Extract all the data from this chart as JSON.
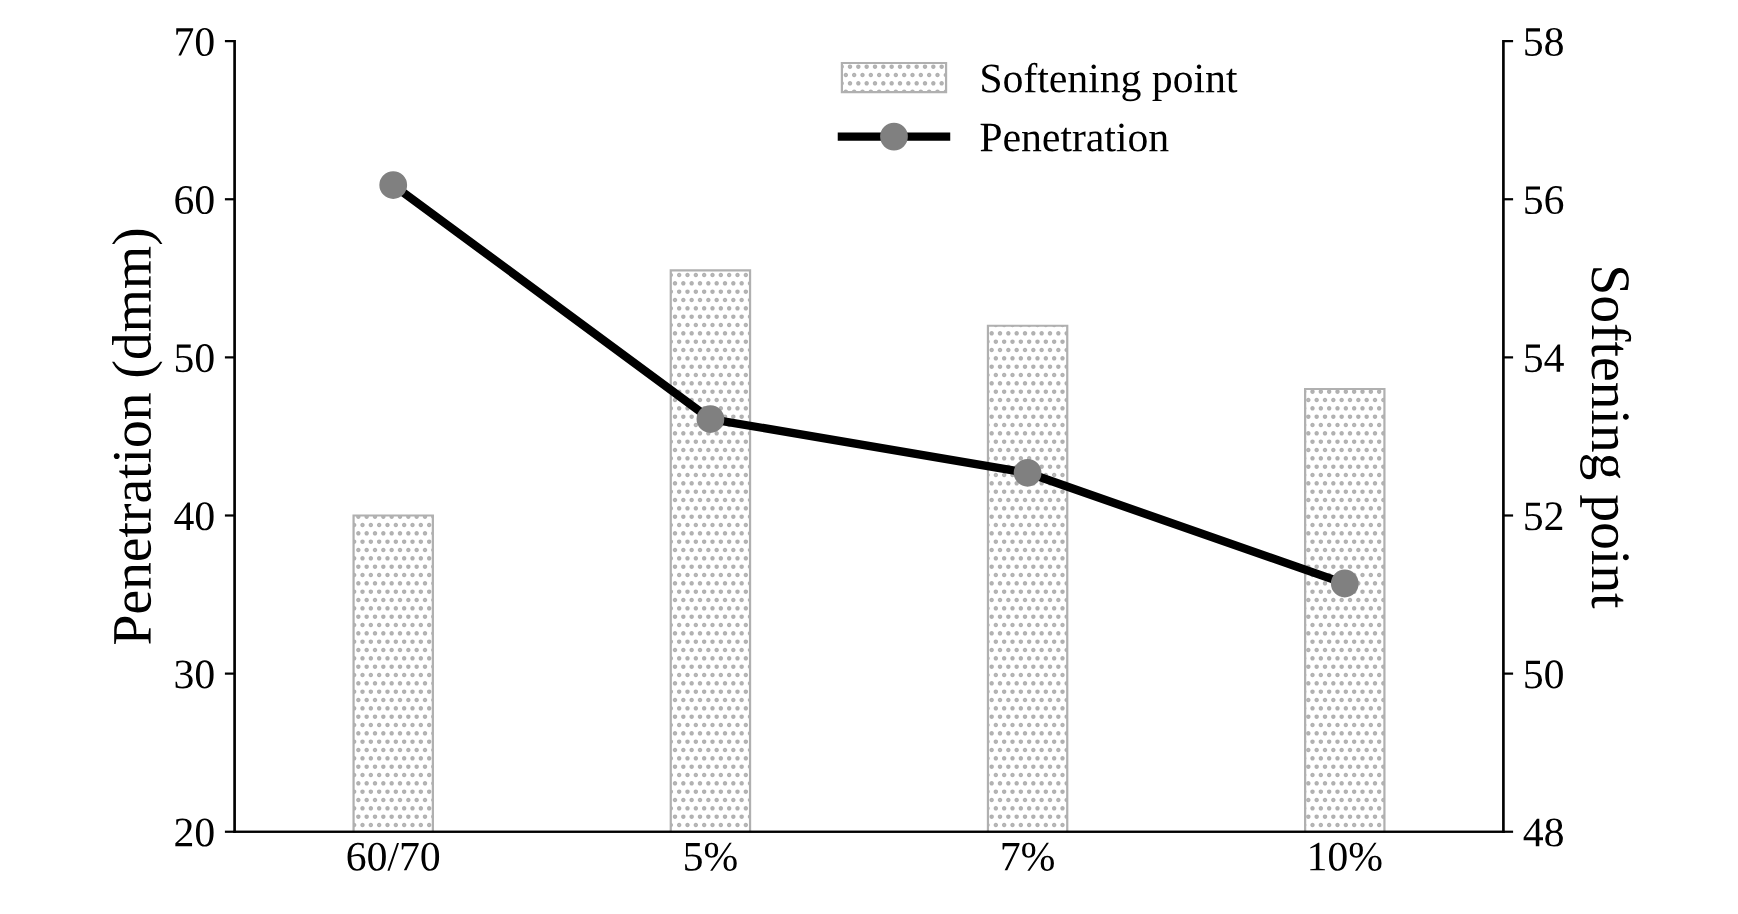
{
  "chart_data": {
    "type": "bar",
    "categories": [
      "60/70",
      "5%",
      "7%",
      "10%"
    ],
    "ylabel": "Penetration (dmm)",
    "y2label": "Softening point",
    "ylim": [
      20,
      70
    ],
    "yticks": [
      20,
      30,
      40,
      50,
      60,
      70
    ],
    "y2lim": [
      48,
      58
    ],
    "y2ticks": [
      48,
      50,
      52,
      54,
      56,
      58
    ],
    "series": [
      {
        "name": "Softening point",
        "axis": "y2",
        "color": "#b0b0b0",
        "values": [
          52.0,
          55.1,
          54.4,
          53.6
        ]
      },
      {
        "name": "Penetration",
        "type": "line",
        "axis": "y",
        "color": "#000000",
        "marker": "circle",
        "line_style": "solid",
        "values": [
          60.9,
          46.1,
          42.7,
          35.7
        ]
      }
    ],
    "grid": false,
    "legend": "top right"
  }
}
